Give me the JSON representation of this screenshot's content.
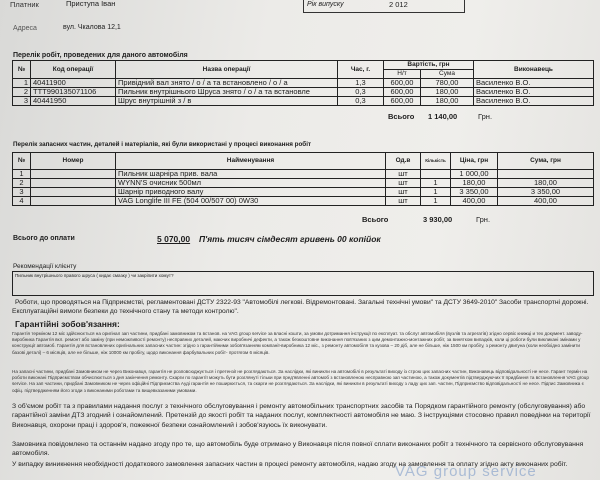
{
  "header": {
    "client_label": "Платник",
    "client": "Приступа Іван",
    "year_label": "Рік випуску",
    "year": "2 012",
    "address_label": "Адреса",
    "address": "вул. Чкалова 12,1"
  },
  "works": {
    "title": "Перелік робіт, проведених для даного автомобіля",
    "columns": {
      "no": "№",
      "code": "Код операції",
      "name": "Назва операції",
      "hours": "Час, г.",
      "cost": "Вартість, грн",
      "rate": "Н/т",
      "sum": "Сума",
      "executor": "Виконавець"
    },
    "rows": [
      {
        "no": "1",
        "code": "40411900",
        "name": "Привідний вал знято / о / а та встановлено / о / а",
        "hours": "1,3",
        "rate": "600,00",
        "sum": "780,00",
        "executor": "Василенко В.О."
      },
      {
        "no": "2",
        "code": "TTT990135071106",
        "name": "Пильник внутрішнього Шруса знято / о / а та встановле",
        "hours": "0,3",
        "rate": "600,00",
        "sum": "180,00",
        "executor": "Василенко В.О."
      },
      {
        "no": "3",
        "code": "40441950",
        "name": "Шрус внутрішній з / в",
        "hours": "0,3",
        "rate": "600,00",
        "sum": "180,00",
        "executor": "Василенко В.О."
      }
    ],
    "total_label": "Всього",
    "total": "1 140,00",
    "currency": "Грн."
  },
  "parts": {
    "title": "Перелік запасних частин, деталей і матеріалів, які були використані у процесі виконання робіт",
    "columns": {
      "no": "№",
      "number": "Номер",
      "name": "Найменування",
      "unit": "Од.в",
      "qty": "Кількість",
      "price": "Ціна, грн",
      "sum": "Сума, грн"
    },
    "rows": [
      {
        "no": "1",
        "number": "",
        "name": "Пильник шарніра прив. вала",
        "unit": "шт",
        "qty": "",
        "price": "1 000,00",
        "sum": ""
      },
      {
        "no": "2",
        "number": "",
        "name": "WYNN'S очисник 500мл",
        "unit": "шт",
        "qty": "1",
        "price": "180,00",
        "sum": "180,00"
      },
      {
        "no": "3",
        "number": "",
        "name": "Шарнір приводного валу",
        "unit": "шт",
        "qty": "1",
        "price": "3 350,00",
        "sum": "3 350,00"
      },
      {
        "no": "4",
        "number": "",
        "name": "VAG Longlife III FE (504 00/507 00) 0W30",
        "unit": "шт",
        "qty": "1",
        "price": "400,00",
        "sum": "400,00"
      }
    ],
    "total_label": "Всього",
    "total": "3 930,00",
    "currency": "Грн."
  },
  "payment": {
    "label": "Всього до оплати",
    "amount": "5 070,00",
    "words": "П'ять тисяч сімдесят гривень 00 копійок"
  },
  "recommendations": {
    "label": "Рекомендації клієнту",
    "text": "Пильник внутрішнього правого шруса ( кидає смазку ) чи закріпити хомут?"
  },
  "standards": "Роботи, що проводяться на Підприємстві, регламентовані ДСТУ 2322-93 \"Автомобілі легкові. Відремонтовані. Загальні технічні умови\" та ДСТУ 3649-2010\" Засоби транспортні дорожні. Експлуатаційні вимоги безпеки до технічного стану та методи контролю\".",
  "warranty": {
    "title": "Гарантійні зобов'язання:",
    "p1": "Гарантія терміном 12 міс здійснюється на оригінал зап частини, придбані замовником та встанов. на VAG group service за власні кошти, за умови дотримання інструкції по експлуат. та обслуг автомобіля (вузлів та агрегатів) згідно сервіс книжці и тех документ. заводу-виробника Гарантія вкл. ремонт або заміну (при неможливості ремонту) несправних деталей, маючих виробничі дефекти, а також безкоштовне виконання пов'язаних з цим демонтажно-монтажних робіт, за винятком випадків, коли ці роботи були викликані змінами у конструкції автомоб. Гарантія для встановлених оригінальних запасних частин: згідно з гарантійними зобов'язанням компанії-виробника 12 міс., з ремонту автомобіля та кузова – 20 діб, але не більше, ніж 1500 км пробігу, з ремонту двигуна (коли необхідно замінити базові деталі) – 6 місяців, але не більше, ніж 10000 км пробігу, щодо виконання фарбувальних робіт- протягом 6 місяців.",
    "p2": "На запасні частини, придбані Замовником не через Виконавця, гарантія не розповсюджується і претензії не розглядаються. За наслідки, які виникли на автомобілі в результаті виходу із строю цих запасних частин, Виконавець відповідальності не несе. Гарант термін на роботи виконані Підприємством обчислюється з дня закінчення ремонту. Скарги по гарантії можуть бути розглянуті тільки при пред'явленні автомоб з встановленою несправною зап частиною, а також документів підтверджуючих її придбання та встановлення VAG group service. На зап частини, придбані Замовником не через офіційні Підприємства Ауді гарантія не поширюється, та скарги не розглядаються. За наслідки, які виникли в результаті виходу з ладу цих зап. частин, Підприємство відповідальності не несе. Підпис Замовника є офіц. підтвердженням його згоди з виконаними роботами та вищевказаними умовами."
  },
  "agreement": [
    "З об'ємом робіт та з правилами надання послуг з технічного обслуговування і ремонту автомобільних транспортних засобів та Порядком гарантійного ремонту (обслуговування) або гарантійної заміни ДТЗ згодний і ознайомлений. Претензій до якості робіт та наданих послуг, комплектності автомобіля не маю. З інструкціями стосовно правил поведінки на території Виконавця, охорони праці і здоров'я, пожежної безпеки ознайомлений і зобов'язуюсь їх виконувати.",
    "Замовника повідомлено та останнім надано згоду про те, що автомобіль буде отримано у Виконавця після повної сплати виконаних робіт з технічного та сервісного обслуговування автомобіля.",
    "У випадку виникнення необхідності додаткового замовлення запасних частин в процесі ремонту автомобіля, надаю згоду на замовлення та оплату згідно акту виконаних робіт."
  ],
  "stamp": "VAG group service"
}
